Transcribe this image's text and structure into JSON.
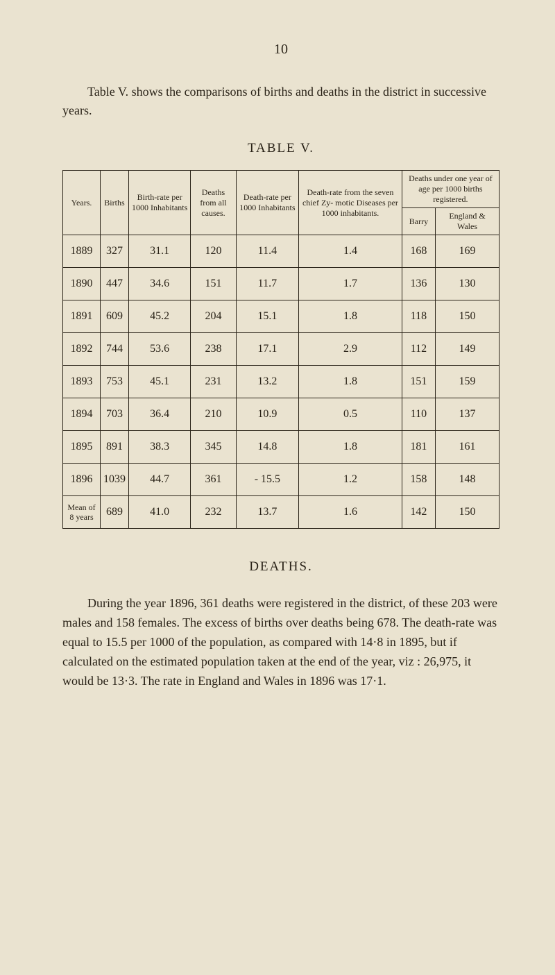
{
  "page_number": "10",
  "intro": "Table V. shows the comparisons of births and deaths in the district in successive years.",
  "table_title": "TABLE V.",
  "headers": {
    "years": "Years.",
    "births": "Births",
    "birth_rate": "Birth-rate per 1000 Inhabitants",
    "deaths": "Deaths from all causes.",
    "death_rate": "Death-rate per 1000 Inhabitants",
    "death_rate_zymotic": "Death-rate from the seven chief Zy- motic Diseases per 1000 inhabitants.",
    "deaths_under_one": "Deaths under one year of age per 1000 births registered.",
    "barry": "Barry",
    "england": "England & Wales"
  },
  "rows": [
    {
      "year": "1889",
      "births": "327",
      "birth_rate": "31.1",
      "deaths": "120",
      "death_rate": "11.4",
      "zymotic": "1.4",
      "barry": "168",
      "england": "169"
    },
    {
      "year": "1890",
      "births": "447",
      "birth_rate": "34.6",
      "deaths": "151",
      "death_rate": "11.7",
      "zymotic": "1.7",
      "barry": "136",
      "england": "130"
    },
    {
      "year": "1891",
      "births": "609",
      "birth_rate": "45.2",
      "deaths": "204",
      "death_rate": "15.1",
      "zymotic": "1.8",
      "barry": "118",
      "england": "150"
    },
    {
      "year": "1892",
      "births": "744",
      "birth_rate": "53.6",
      "deaths": "238",
      "death_rate": "17.1",
      "zymotic": "2.9",
      "barry": "112",
      "england": "149"
    },
    {
      "year": "1893",
      "births": "753",
      "birth_rate": "45.1",
      "deaths": "231",
      "death_rate": "13.2",
      "zymotic": "1.8",
      "barry": "151",
      "england": "159"
    },
    {
      "year": "1894",
      "births": "703",
      "birth_rate": "36.4",
      "deaths": "210",
      "death_rate": "10.9",
      "zymotic": "0.5",
      "barry": "110",
      "england": "137"
    },
    {
      "year": "1895",
      "births": "891",
      "birth_rate": "38.3",
      "deaths": "345",
      "death_rate": "14.8",
      "zymotic": "1.8",
      "barry": "181",
      "england": "161"
    },
    {
      "year": "1896",
      "births": "1039",
      "birth_rate": "44.7",
      "deaths": "361",
      "death_rate": "- 15.5",
      "zymotic": "1.2",
      "barry": "158",
      "england": "148"
    }
  ],
  "mean_label": "Mean of 8 years",
  "mean": {
    "births": "689",
    "birth_rate": "41.0",
    "deaths": "232",
    "death_rate": "13.7",
    "zymotic": "1.6",
    "barry": "142",
    "england": "150"
  },
  "section_title": "DEATHS.",
  "body_text": "During the year 1896, 361 deaths were registered in the district, of these 203 were males and 158 females. The excess of births over deaths being 678. The death-rate was equal to 15.5 per 1000 of the population, as compared with 14·8 in 1895, but if calculated on the estimated population taken at the end of the year, viz : 26,975, it would be 13·3. The rate in England and Wales in 1896 was 17·1."
}
